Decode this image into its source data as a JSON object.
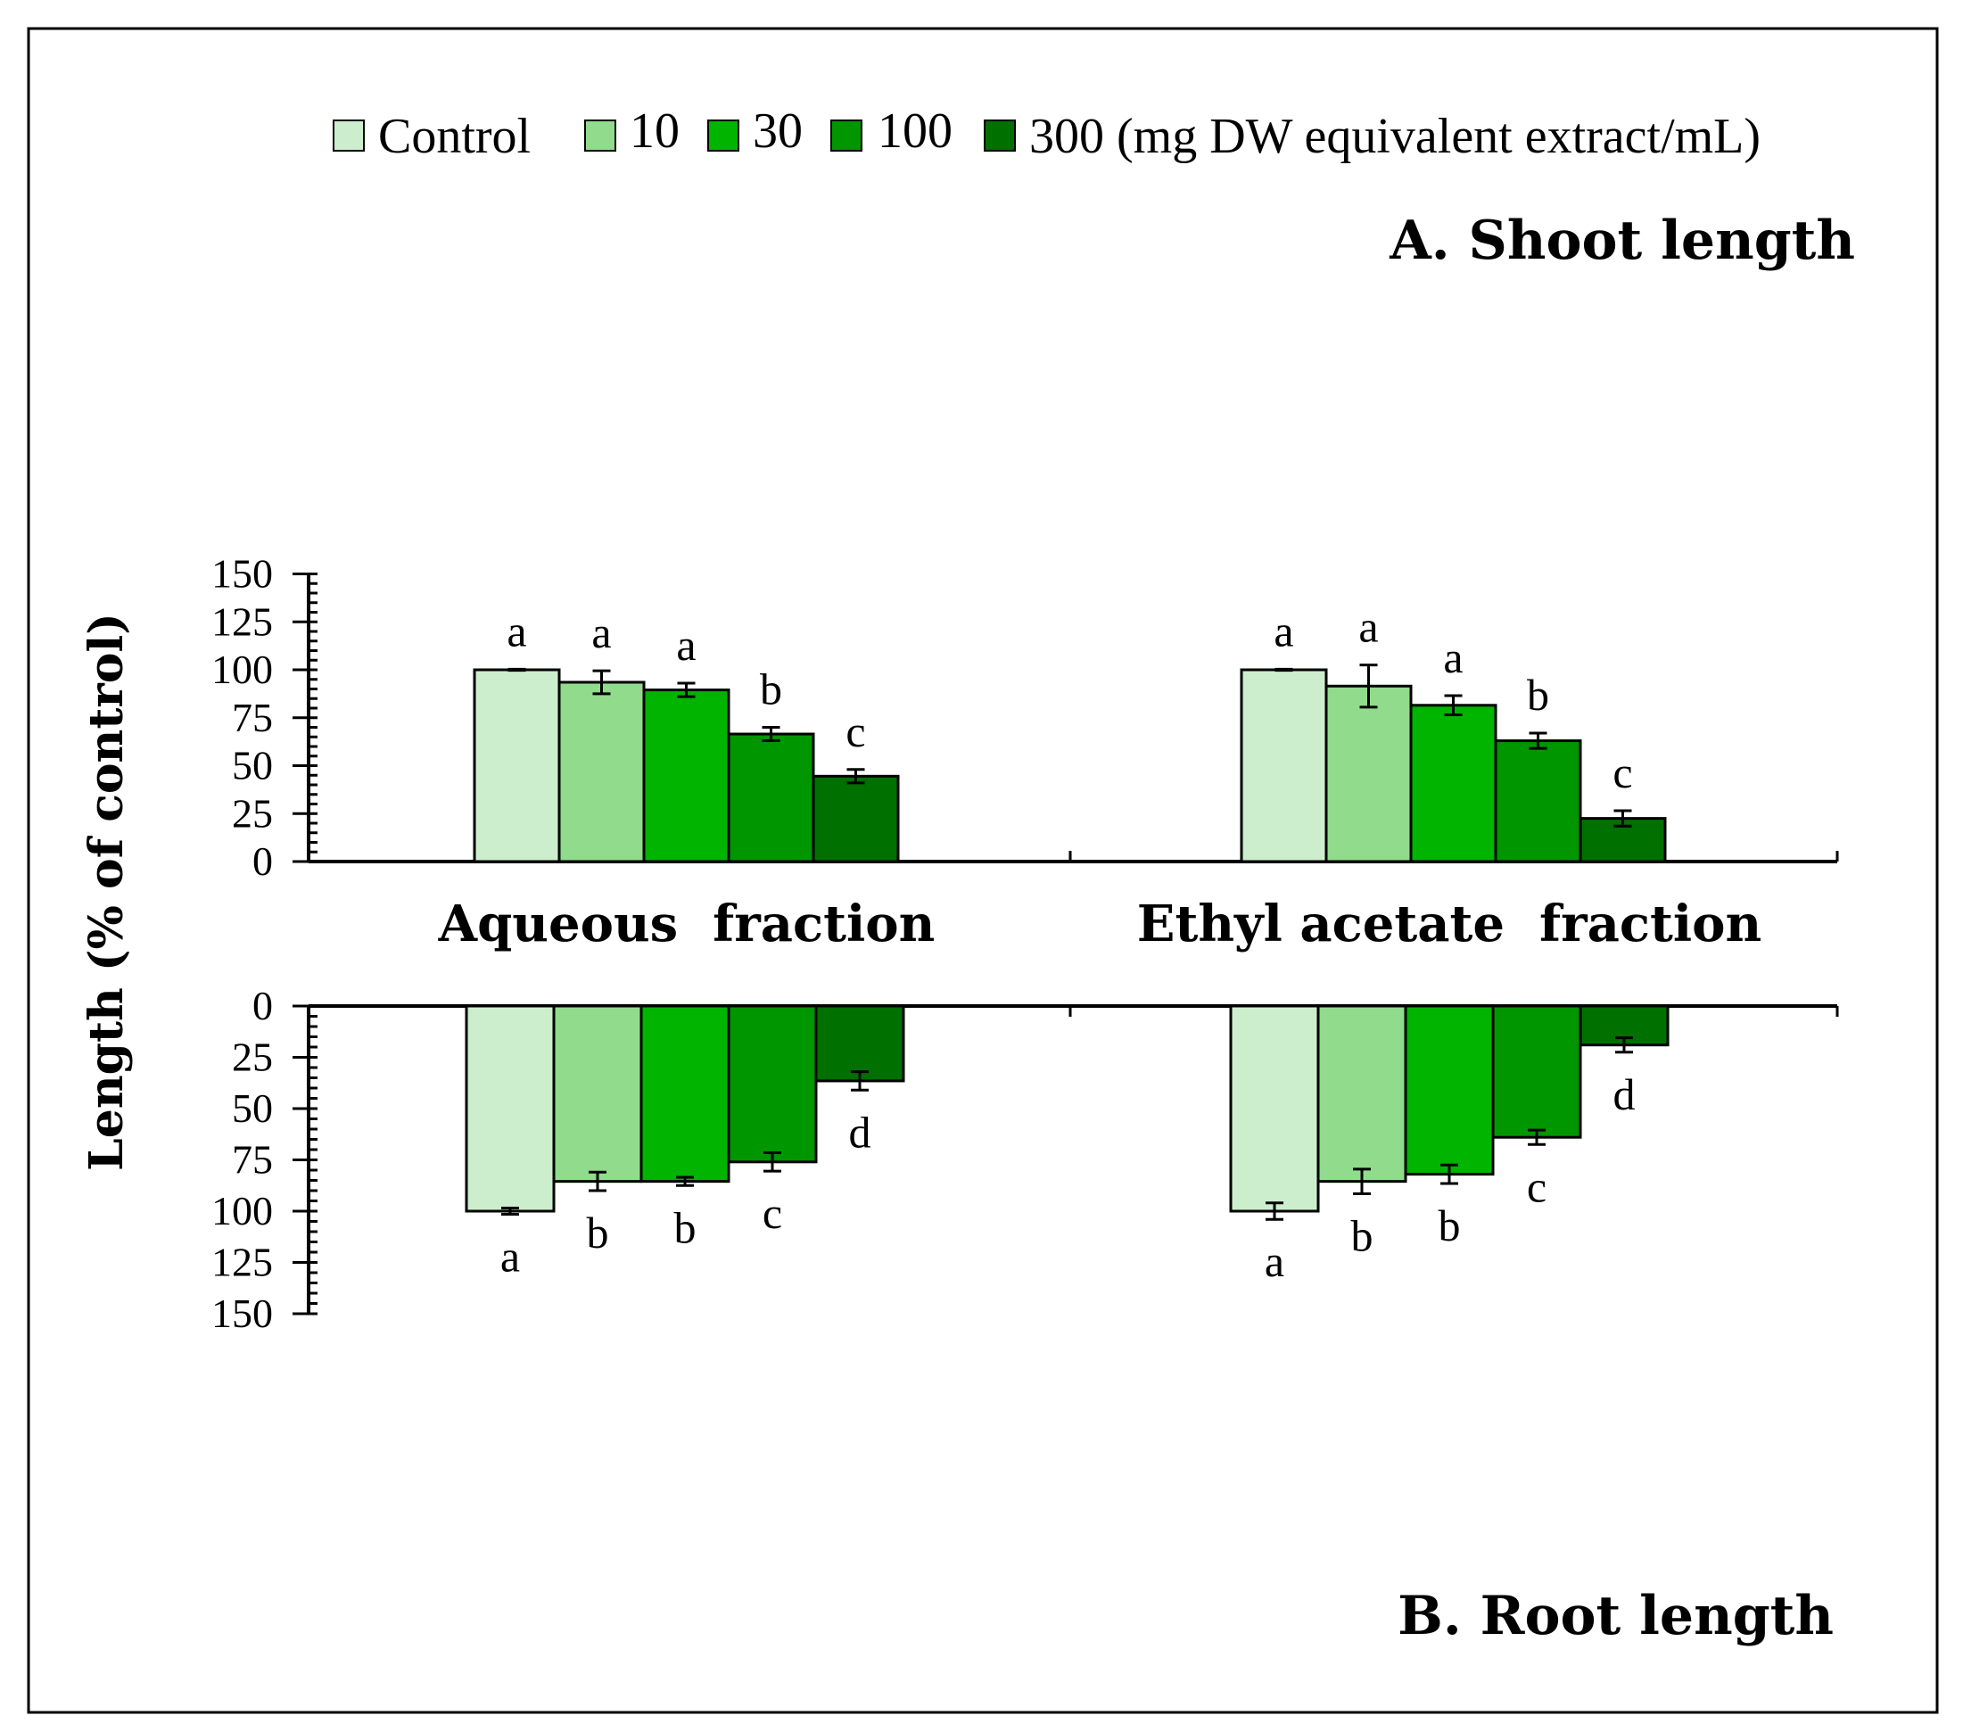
{
  "chart_data": {
    "type": "bar",
    "ylabel": "Length (% of control)",
    "categories": [
      "Aqueous  fraction",
      "Ethyl acetate  fraction"
    ],
    "legend": {
      "labels": [
        "Control",
        "10",
        "30",
        "100",
        "300"
      ],
      "unit_suffix": "(mg DW equivalent extract/mL)",
      "colors": [
        "#cdeecd",
        "#90dc8c",
        "#00b400",
        "#009600",
        "#007000"
      ]
    },
    "ylim": [
      0,
      150
    ],
    "yticks": [
      0,
      25,
      50,
      75,
      100,
      125,
      150
    ],
    "panels": [
      {
        "key": "shoot",
        "title": "A. Shoot length",
        "direction": "up",
        "series": [
          {
            "name": "Control",
            "values": [
              100,
              100
            ],
            "errors": [
              0.3,
              0.3
            ],
            "letters": [
              "a",
              "a"
            ]
          },
          {
            "name": "10",
            "values": [
              93.5,
              91.5
            ],
            "errors": [
              6,
              11
            ],
            "letters": [
              "a",
              "a"
            ]
          },
          {
            "name": "30",
            "values": [
              89.5,
              81.5
            ],
            "errors": [
              3.5,
              5
            ],
            "letters": [
              "a",
              "a"
            ]
          },
          {
            "name": "100",
            "values": [
              66.5,
              63
            ],
            "errors": [
              3.5,
              4
            ],
            "letters": [
              "b",
              "b"
            ]
          },
          {
            "name": "300",
            "values": [
              44.5,
              22.5
            ],
            "errors": [
              3.5,
              4
            ],
            "letters": [
              "c",
              "c"
            ]
          }
        ]
      },
      {
        "key": "root",
        "title": "B. Root length",
        "direction": "down",
        "series": [
          {
            "name": "Control",
            "values": [
              100,
              100
            ],
            "errors": [
              1.5,
              4
            ],
            "letters": [
              "a",
              "a"
            ]
          },
          {
            "name": "10",
            "values": [
              85.5,
              85.5
            ],
            "errors": [
              4.5,
              6
            ],
            "letters": [
              "b",
              "b"
            ]
          },
          {
            "name": "30",
            "values": [
              85.5,
              82
            ],
            "errors": [
              2,
              4.5
            ],
            "letters": [
              "b",
              "b"
            ]
          },
          {
            "name": "100",
            "values": [
              76,
              64
            ],
            "errors": [
              4.5,
              3.5
            ],
            "letters": [
              "c",
              "c"
            ]
          },
          {
            "name": "300",
            "values": [
              36.5,
              19
            ],
            "errors": [
              4.5,
              3.5
            ],
            "letters": [
              "d",
              "d"
            ]
          }
        ]
      }
    ]
  }
}
